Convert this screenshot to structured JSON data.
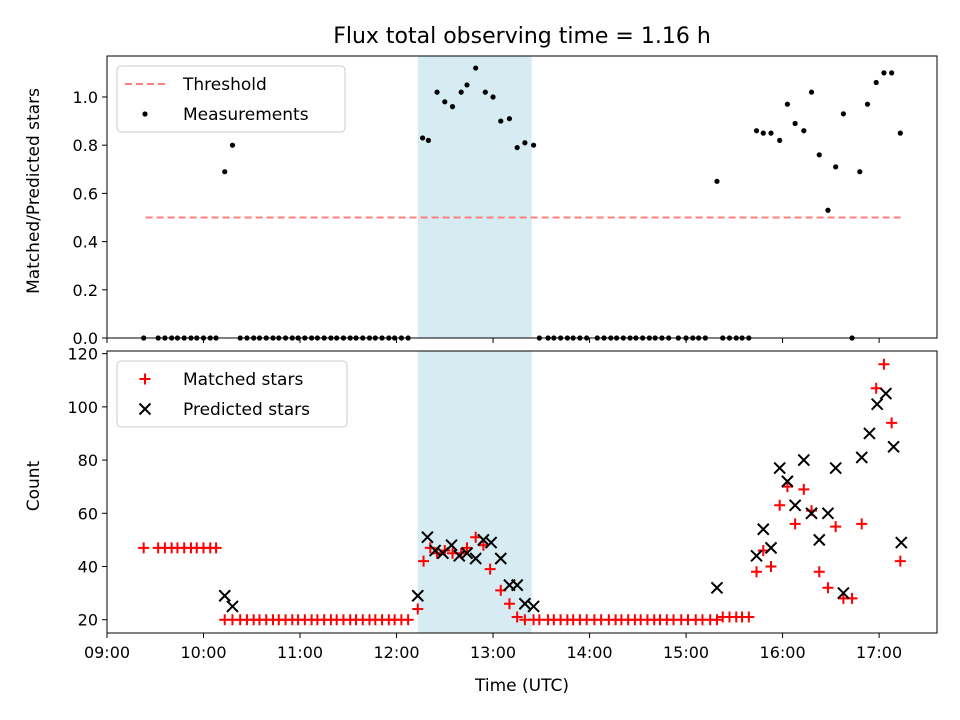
{
  "chart_data": [
    {
      "type": "scatter",
      "title": "Flux total observing time = 1.16 h",
      "xlabel": "",
      "ylabel": "Matched/Predicted stars",
      "xlim": [
        9.0,
        17.6
      ],
      "ylim": [
        0.0,
        1.17
      ],
      "yticks": [
        0.0,
        0.2,
        0.4,
        0.6,
        0.8,
        1.0
      ],
      "yticklabels": [
        "0.0",
        "0.2",
        "0.4",
        "0.6",
        "0.8",
        "1.0"
      ],
      "legend_position": "top-left",
      "shaded_span": {
        "x": [
          12.22,
          13.4
        ],
        "color": "#add8e6"
      },
      "threshold": {
        "name": "Threshold",
        "value": 0.5,
        "x": [
          9.4,
          17.25
        ],
        "color": "#ff7f7f",
        "style": "dashed"
      },
      "series": [
        {
          "name": "Measurements",
          "marker": "dot",
          "color": "#000000",
          "x": [
            9.38,
            9.53,
            9.6,
            9.67,
            9.73,
            9.8,
            9.87,
            9.93,
            10.0,
            10.07,
            10.13,
            10.22,
            10.3,
            10.38,
            10.45,
            10.52,
            10.58,
            10.65,
            10.72,
            10.78,
            10.85,
            10.92,
            10.98,
            11.05,
            11.12,
            11.18,
            11.25,
            11.32,
            11.38,
            11.45,
            11.52,
            11.58,
            11.65,
            11.72,
            11.78,
            11.85,
            11.92,
            11.98,
            12.05,
            12.12,
            12.27,
            12.33,
            12.42,
            12.5,
            12.58,
            12.67,
            12.73,
            12.82,
            12.92,
            13.0,
            13.08,
            13.17,
            13.25,
            13.33,
            13.42,
            13.48,
            13.57,
            13.63,
            13.7,
            13.77,
            13.83,
            13.9,
            13.97,
            14.08,
            14.15,
            14.22,
            14.28,
            14.35,
            14.42,
            14.48,
            14.55,
            14.62,
            14.68,
            14.75,
            14.82,
            14.92,
            15.0,
            15.07,
            15.13,
            15.2,
            15.32,
            15.38,
            15.45,
            15.52,
            15.58,
            15.65,
            15.73,
            15.8,
            15.88,
            15.97,
            16.05,
            16.13,
            16.22,
            16.3,
            16.38,
            16.47,
            16.55,
            16.63,
            16.72,
            16.8,
            16.88,
            16.97,
            17.05,
            17.13,
            17.22
          ],
          "y": [
            0,
            0,
            0,
            0,
            0,
            0,
            0,
            0,
            0,
            0,
            0,
            0.69,
            0.8,
            0,
            0,
            0,
            0,
            0,
            0,
            0,
            0,
            0,
            0,
            0,
            0,
            0,
            0,
            0,
            0,
            0,
            0,
            0,
            0,
            0,
            0,
            0,
            0,
            0,
            0,
            0,
            0.83,
            0.82,
            1.02,
            0.98,
            0.96,
            1.02,
            1.05,
            1.12,
            1.02,
            1.0,
            0.9,
            0.91,
            0.79,
            0.81,
            0.8,
            0,
            0,
            0,
            0,
            0,
            0,
            0,
            0,
            0,
            0,
            0,
            0,
            0,
            0,
            0,
            0,
            0,
            0,
            0,
            0,
            0,
            0,
            0,
            0,
            0,
            0.65,
            0,
            0,
            0,
            0,
            0,
            0.86,
            0.85,
            0.85,
            0.82,
            0.97,
            0.89,
            0.86,
            1.02,
            0.76,
            0.53,
            0.71,
            0.93,
            0,
            0.69,
            0.97,
            1.06,
            1.1,
            1.1,
            0.85
          ]
        }
      ]
    },
    {
      "type": "scatter",
      "title": "",
      "xlabel": "Time (UTC)",
      "ylabel": "Count",
      "xlim": [
        9.0,
        17.6
      ],
      "ylim": [
        15,
        121
      ],
      "xticks": [
        9,
        10,
        11,
        12,
        13,
        14,
        15,
        16,
        17
      ],
      "xticklabels": [
        "09:00",
        "10:00",
        "11:00",
        "12:00",
        "13:00",
        "14:00",
        "15:00",
        "16:00",
        "17:00"
      ],
      "yticks": [
        20,
        40,
        60,
        80,
        100,
        120
      ],
      "yticklabels": [
        "20",
        "40",
        "60",
        "80",
        "100",
        "120"
      ],
      "legend_position": "top-left",
      "shaded_span": {
        "x": [
          12.22,
          13.4
        ],
        "color": "#add8e6"
      },
      "series": [
        {
          "name": "Matched stars",
          "marker": "plus",
          "color": "#ff0000",
          "x": [
            9.38,
            9.53,
            9.6,
            9.67,
            9.73,
            9.8,
            9.87,
            9.93,
            10.0,
            10.07,
            10.13,
            10.22,
            10.3,
            10.38,
            10.45,
            10.52,
            10.58,
            10.65,
            10.72,
            10.78,
            10.85,
            10.92,
            10.98,
            11.05,
            11.12,
            11.18,
            11.25,
            11.32,
            11.38,
            11.45,
            11.52,
            11.58,
            11.65,
            11.72,
            11.78,
            11.85,
            11.92,
            11.98,
            12.05,
            12.12,
            12.22,
            12.28,
            12.35,
            12.42,
            12.5,
            12.58,
            12.67,
            12.73,
            12.82,
            12.9,
            12.97,
            13.08,
            13.17,
            13.25,
            13.33,
            13.42,
            13.48,
            13.57,
            13.63,
            13.7,
            13.77,
            13.83,
            13.9,
            13.97,
            14.05,
            14.12,
            14.2,
            14.27,
            14.33,
            14.4,
            14.47,
            14.53,
            14.6,
            14.67,
            14.73,
            14.8,
            14.87,
            14.95,
            15.02,
            15.1,
            15.17,
            15.25,
            15.32,
            15.38,
            15.45,
            15.52,
            15.58,
            15.65,
            15.73,
            15.8,
            15.88,
            15.97,
            16.05,
            16.13,
            16.22,
            16.3,
            16.38,
            16.47,
            16.55,
            16.63,
            16.72,
            16.82,
            16.97,
            17.05,
            17.13,
            17.22
          ],
          "y": [
            47,
            47,
            47,
            47,
            47,
            47,
            47,
            47,
            47,
            47,
            47,
            20,
            20,
            20,
            20,
            20,
            20,
            20,
            20,
            20,
            20,
            20,
            20,
            20,
            20,
            20,
            20,
            20,
            20,
            20,
            20,
            20,
            20,
            20,
            20,
            20,
            20,
            20,
            20,
            20,
            24,
            42,
            47,
            45,
            46,
            45,
            45,
            47,
            51,
            48,
            39,
            31,
            26,
            21,
            20,
            20,
            20,
            20,
            20,
            20,
            20,
            20,
            20,
            20,
            20,
            20,
            20,
            20,
            20,
            20,
            20,
            20,
            20,
            20,
            20,
            20,
            20,
            20,
            20,
            20,
            20,
            20,
            20,
            21,
            21,
            21,
            21,
            21,
            38,
            46,
            40,
            63,
            70,
            56,
            69,
            61,
            38,
            32,
            55,
            28,
            28,
            56,
            107,
            116,
            94,
            42
          ]
        },
        {
          "name": "Predicted stars",
          "marker": "x",
          "color": "#000000",
          "x": [
            10.22,
            10.3,
            12.22,
            12.32,
            12.4,
            12.48,
            12.57,
            12.65,
            12.73,
            12.82,
            12.9,
            12.98,
            13.08,
            13.17,
            13.25,
            13.33,
            13.42,
            15.32,
            15.73,
            15.8,
            15.88,
            15.97,
            16.05,
            16.13,
            16.22,
            16.3,
            16.38,
            16.47,
            16.55,
            16.63,
            16.82,
            16.9,
            16.98,
            17.07,
            17.15,
            17.23
          ],
          "y": [
            29,
            25,
            29,
            51,
            46,
            45,
            48,
            44,
            45,
            43,
            50,
            49,
            43,
            33,
            33,
            26,
            25,
            32,
            44,
            54,
            47,
            77,
            72,
            63,
            80,
            60,
            50,
            60,
            77,
            30,
            81,
            90,
            101,
            105,
            85,
            49
          ]
        }
      ]
    }
  ]
}
